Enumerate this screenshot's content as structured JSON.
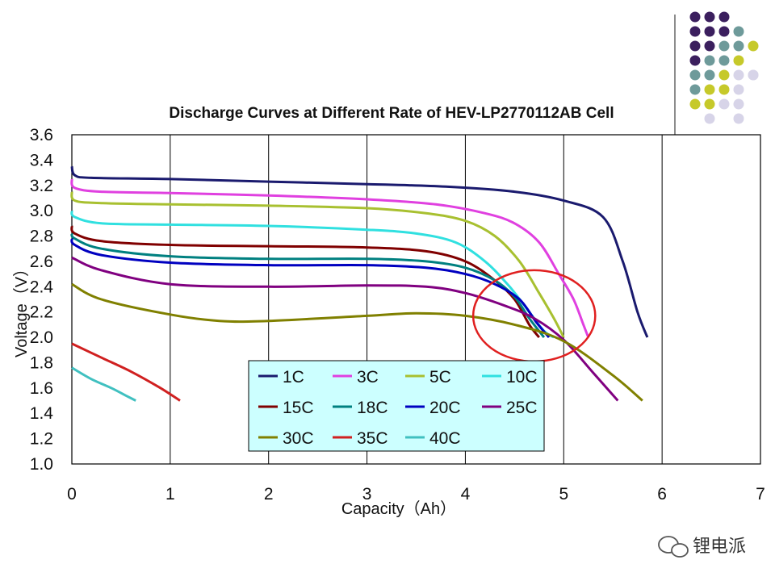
{
  "chart_data": {
    "type": "line",
    "title": "Discharge Curves at Different Rate  of HEV-LP2770112AB Cell",
    "xlabel": "Capacity（Ah）",
    "ylabel": "Voltage（V）",
    "xlim": [
      0,
      7
    ],
    "ylim": [
      1.0,
      3.6
    ],
    "xticks": [
      "0",
      "1",
      "2",
      "3",
      "4",
      "5",
      "6",
      "7"
    ],
    "yticks": [
      "1.0",
      "1.2",
      "1.4",
      "1.6",
      "1.8",
      "2.0",
      "2.2",
      "2.4",
      "2.6",
      "2.8",
      "3.0",
      "3.2",
      "3.4",
      "3.6"
    ],
    "grid": "vertical",
    "legend_position": "bottom-center",
    "series": [
      {
        "name": "1C",
        "color": "#1a1a6e",
        "x": [
          0,
          0.03,
          0.2,
          1,
          2,
          3,
          3.8,
          4.5,
          5.0,
          5.4,
          5.6,
          5.75,
          5.85
        ],
        "y": [
          3.35,
          3.28,
          3.26,
          3.25,
          3.23,
          3.21,
          3.19,
          3.15,
          3.08,
          2.95,
          2.6,
          2.2,
          2.0
        ]
      },
      {
        "name": "3C",
        "color": "#e040e0",
        "x": [
          0,
          0.03,
          0.3,
          1,
          2,
          3,
          3.7,
          4.2,
          4.5,
          4.75,
          4.95,
          5.1,
          5.2,
          5.25
        ],
        "y": [
          3.25,
          3.18,
          3.15,
          3.14,
          3.12,
          3.09,
          3.05,
          2.98,
          2.9,
          2.75,
          2.5,
          2.3,
          2.1,
          2.0
        ]
      },
      {
        "name": "5C",
        "color": "#a8c030",
        "x": [
          0,
          0.03,
          0.3,
          1,
          2,
          3,
          3.6,
          4.0,
          4.3,
          4.55,
          4.75,
          4.9,
          5.0
        ],
        "y": [
          3.15,
          3.08,
          3.06,
          3.05,
          3.04,
          3.02,
          2.98,
          2.92,
          2.8,
          2.6,
          2.35,
          2.15,
          2.0
        ]
      },
      {
        "name": "10C",
        "color": "#30e0e0",
        "x": [
          0,
          0.03,
          0.3,
          1,
          2,
          3,
          3.5,
          3.9,
          4.2,
          4.45,
          4.65,
          4.8,
          4.9
        ],
        "y": [
          3.0,
          2.95,
          2.9,
          2.89,
          2.88,
          2.85,
          2.82,
          2.75,
          2.6,
          2.4,
          2.2,
          2.05,
          2.0
        ]
      },
      {
        "name": "15C",
        "color": "#800000",
        "x": [
          0,
          0.03,
          0.3,
          1,
          2,
          3,
          3.6,
          4.0,
          4.3,
          4.5,
          4.65,
          4.75
        ],
        "y": [
          2.88,
          2.82,
          2.76,
          2.73,
          2.72,
          2.71,
          2.68,
          2.6,
          2.45,
          2.3,
          2.1,
          2.0
        ]
      },
      {
        "name": "18C",
        "color": "#008080",
        "x": [
          0,
          0.03,
          0.3,
          1,
          2,
          3,
          3.6,
          4.0,
          4.3,
          4.5,
          4.65,
          4.8
        ],
        "y": [
          2.82,
          2.78,
          2.7,
          2.64,
          2.62,
          2.62,
          2.6,
          2.55,
          2.45,
          2.32,
          2.15,
          2.0
        ]
      },
      {
        "name": "20C",
        "color": "#0000c0",
        "x": [
          0,
          0.03,
          0.3,
          1,
          2,
          3,
          3.6,
          4.0,
          4.3,
          4.55,
          4.72,
          4.85
        ],
        "y": [
          2.78,
          2.73,
          2.65,
          2.59,
          2.57,
          2.57,
          2.55,
          2.5,
          2.42,
          2.3,
          2.12,
          2.0
        ]
      },
      {
        "name": "25C",
        "color": "#800080",
        "x": [
          0,
          0.3,
          1,
          2,
          3,
          3.6,
          4.0,
          4.4,
          4.7,
          5.0,
          5.3,
          5.55
        ],
        "y": [
          2.63,
          2.53,
          2.42,
          2.4,
          2.41,
          2.4,
          2.35,
          2.25,
          2.15,
          1.98,
          1.72,
          1.5
        ]
      },
      {
        "name": "30C",
        "color": "#808000",
        "x": [
          0,
          0.3,
          1,
          1.5,
          2,
          3,
          3.5,
          4.0,
          4.5,
          5.0,
          5.5,
          5.8
        ],
        "y": [
          2.42,
          2.3,
          2.18,
          2.13,
          2.13,
          2.17,
          2.19,
          2.17,
          2.1,
          1.97,
          1.7,
          1.5
        ]
      },
      {
        "name": "35C",
        "color": "#d02020",
        "x": [
          0,
          0.3,
          0.6,
          0.9,
          1.1
        ],
        "y": [
          1.95,
          1.84,
          1.73,
          1.6,
          1.5
        ]
      },
      {
        "name": "40C",
        "color": "#40c0c0",
        "x": [
          0,
          0.2,
          0.4,
          0.55,
          0.65
        ],
        "y": [
          1.76,
          1.67,
          1.6,
          1.54,
          1.5
        ]
      }
    ],
    "annotation": {
      "type": "ellipse",
      "color": "#e02020",
      "cx": 4.7,
      "cy": 2.17,
      "rx": 0.62,
      "ry": 0.36
    }
  },
  "watermark": {
    "text": "锂电派"
  },
  "logo_colors": [
    "#3b1f5e",
    "#6e9a9a",
    "#c6c92a",
    "#d7d4e8"
  ]
}
